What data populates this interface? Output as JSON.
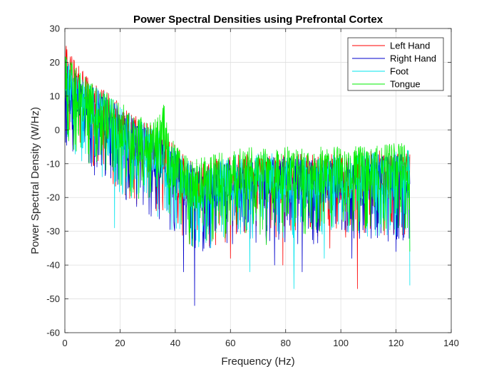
{
  "chart_data": {
    "type": "line",
    "title": "Power Spectral Densities using Prefrontal Cortex",
    "xlabel": "Frequency (Hz)",
    "ylabel": "Power Spectral Density (W/Hz)",
    "xlim": [
      0,
      140
    ],
    "ylim": [
      -60,
      30
    ],
    "xticks": [
      0,
      20,
      40,
      60,
      80,
      100,
      120,
      140
    ],
    "yticks": [
      -60,
      -50,
      -40,
      -30,
      -20,
      -10,
      0,
      10,
      20,
      30
    ],
    "grid": true,
    "legend_position": "top-right",
    "x_range": [
      0,
      125
    ],
    "series": [
      {
        "name": "Left Hand",
        "color": "#ff0000",
        "envelope": [
          [
            0,
            22
          ],
          [
            3,
            13
          ],
          [
            8,
            8
          ],
          [
            15,
            4
          ],
          [
            22,
            -2
          ],
          [
            30,
            -6
          ],
          [
            36,
            -9
          ],
          [
            40,
            -12
          ],
          [
            45,
            -17
          ],
          [
            50,
            -18
          ],
          [
            60,
            -15
          ],
          [
            80,
            -15
          ],
          [
            100,
            -15
          ],
          [
            110,
            -14
          ],
          [
            125,
            -14
          ]
        ],
        "spikes": [
          [
            47,
            -40
          ],
          [
            106,
            -47
          ],
          [
            60,
            -38
          ],
          [
            79,
            -40
          ],
          [
            96,
            -35
          ]
        ]
      },
      {
        "name": "Right Hand",
        "color": "#0000cc",
        "envelope": [
          [
            0,
            12
          ],
          [
            3,
            10
          ],
          [
            8,
            6
          ],
          [
            15,
            2
          ],
          [
            22,
            -3
          ],
          [
            30,
            -7
          ],
          [
            36,
            -10
          ],
          [
            40,
            -14
          ],
          [
            45,
            -18
          ],
          [
            50,
            -19
          ],
          [
            60,
            -16
          ],
          [
            80,
            -16
          ],
          [
            100,
            -16
          ],
          [
            110,
            -15
          ],
          [
            125,
            -15
          ]
        ],
        "spikes": [
          [
            47,
            -52
          ],
          [
            43,
            -42
          ],
          [
            86,
            -42
          ],
          [
            76,
            -40
          ],
          [
            104,
            -38
          ],
          [
            120,
            -36
          ]
        ]
      },
      {
        "name": "Foot",
        "color": "#00e5ee",
        "envelope": [
          [
            0,
            14
          ],
          [
            3,
            11
          ],
          [
            8,
            7
          ],
          [
            15,
            3
          ],
          [
            22,
            -2
          ],
          [
            30,
            -6
          ],
          [
            36,
            -9
          ],
          [
            40,
            -13
          ],
          [
            45,
            -17
          ],
          [
            50,
            -18
          ],
          [
            60,
            -15
          ],
          [
            80,
            -15
          ],
          [
            100,
            -15
          ],
          [
            110,
            -14
          ],
          [
            125,
            -14
          ]
        ],
        "spikes": [
          [
            83,
            -47
          ],
          [
            125,
            -46
          ],
          [
            67,
            -42
          ],
          [
            94,
            -38
          ],
          [
            18,
            -29
          ]
        ]
      },
      {
        "name": "Tongue",
        "color": "#00ee00",
        "envelope": [
          [
            0,
            15
          ],
          [
            3,
            12
          ],
          [
            8,
            7
          ],
          [
            15,
            3
          ],
          [
            22,
            -1
          ],
          [
            30,
            -5
          ],
          [
            34,
            -4
          ],
          [
            36,
            0
          ],
          [
            38,
            -10
          ],
          [
            42,
            -14
          ],
          [
            46,
            -17
          ],
          [
            50,
            -16
          ],
          [
            60,
            -13
          ],
          [
            80,
            -13
          ],
          [
            100,
            -13
          ],
          [
            110,
            -12
          ],
          [
            125,
            -12
          ]
        ],
        "spikes": [
          [
            36,
            7
          ],
          [
            125,
            -36
          ],
          [
            58,
            -32
          ],
          [
            73,
            -34
          ]
        ]
      }
    ]
  }
}
